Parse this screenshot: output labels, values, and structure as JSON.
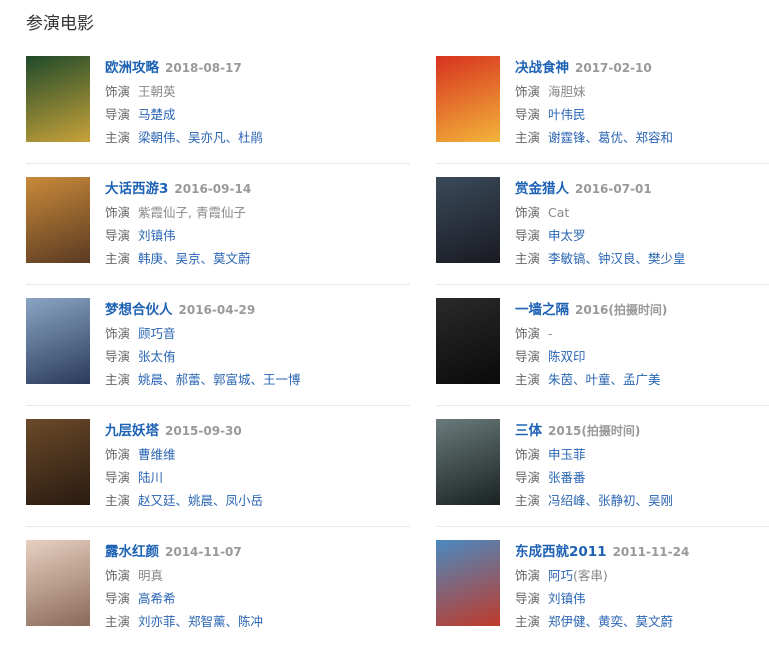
{
  "heading": "参演电影",
  "labels": {
    "role": "饰演",
    "director": "导演",
    "cast": "主演"
  },
  "colors": {
    "link": "#2a65b3",
    "title": "#1e62b4",
    "date": "#999999"
  },
  "movies": [
    {
      "title": "欧洲攻略",
      "date": "2018-08-17",
      "role": "王朝英",
      "role_link": false,
      "role_note": "",
      "director": "马楚成",
      "cast": "梁朝伟、吴亦凡、杜鹃",
      "poster": [
        "#1f4a2a",
        "#c8a23a"
      ]
    },
    {
      "title": "决战食神",
      "date": "2017-02-10",
      "role": "海胆妹",
      "role_link": false,
      "role_note": "",
      "director": "叶伟民",
      "cast": "谢霆锋、葛优、郑容和",
      "poster": [
        "#d7321f",
        "#f2b43a"
      ]
    },
    {
      "title": "大话西游3",
      "date": "2016-09-14",
      "role": "紫霞仙子, 青霞仙子",
      "role_link": false,
      "role_note": "",
      "director": "刘镇伟",
      "cast": "韩庚、吴京、莫文蔚",
      "poster": [
        "#c98a3a",
        "#5a3a22"
      ]
    },
    {
      "title": "赏金猎人",
      "date": "2016-07-01",
      "role": "Cat",
      "role_link": false,
      "role_note": "",
      "director": "申太罗",
      "cast": "李敏镐、钟汉良、樊少皇",
      "poster": [
        "#3a4a5a",
        "#1a1a22"
      ]
    },
    {
      "title": "梦想合伙人",
      "date": "2016-04-29",
      "role": "顾巧音",
      "role_link": true,
      "role_note": "",
      "director": "张太侑",
      "cast": "姚晨、郝蕾、郭富城、王一博",
      "poster": [
        "#8aa6c4",
        "#2a3a5a"
      ]
    },
    {
      "title": "一墙之隔",
      "date": "2016(拍摄时间)",
      "role": "-",
      "role_link": false,
      "role_note": "",
      "director": "陈双印",
      "cast": "朱茵、叶童、孟广美",
      "poster": [
        "#2a2a2a",
        "#0a0a0a"
      ]
    },
    {
      "title": "九层妖塔",
      "date": "2015-09-30",
      "role": "曹维维",
      "role_link": true,
      "role_note": "",
      "director": "陆川",
      "cast": "赵又廷、姚晨、凤小岳",
      "poster": [
        "#6a4a2a",
        "#2a1a10"
      ]
    },
    {
      "title": "三体",
      "date": "2015(拍摄时间)",
      "role": "申玉菲",
      "role_link": true,
      "role_note": "",
      "director": "张番番",
      "cast": "冯绍峰、张静初、吴刚",
      "poster": [
        "#6a7a7a",
        "#1a2222"
      ]
    },
    {
      "title": "露水红颜",
      "date": "2014-11-07",
      "role": "明真",
      "role_link": false,
      "role_note": "",
      "director": "高希希",
      "cast": "刘亦菲、郑智薰、陈冲",
      "poster": [
        "#e8d0c0",
        "#8a6a5a"
      ]
    },
    {
      "title": "东成西就2011",
      "date": "2011-11-24",
      "role": "阿巧",
      "role_link": true,
      "role_note": "(客串)",
      "director": "刘镇伟",
      "cast": "郑伊健、黄奕、莫文蔚",
      "poster": [
        "#4a8ac0",
        "#c03a2a"
      ]
    }
  ]
}
